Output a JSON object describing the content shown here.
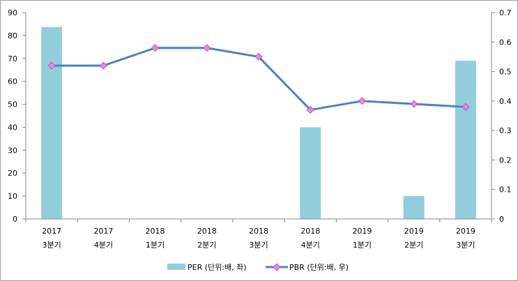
{
  "chart_data": {
    "type": "bar+line",
    "categories": [
      [
        "2017",
        "3분기"
      ],
      [
        "2017",
        "4분기"
      ],
      [
        "2018",
        "1분기"
      ],
      [
        "2018",
        "2분기"
      ],
      [
        "2018",
        "3분기"
      ],
      [
        "2018",
        "4분기"
      ],
      [
        "2019",
        "1분기"
      ],
      [
        "2019",
        "2분기"
      ],
      [
        "2019",
        "3분기"
      ]
    ],
    "series": [
      {
        "name": "PER (단위:배, 좌)",
        "type": "bar",
        "axis": "left",
        "values": [
          83.7,
          null,
          null,
          null,
          null,
          40,
          null,
          10,
          69
        ],
        "color": "#92cddc"
      },
      {
        "name": "PBR (단위:배, 우)",
        "type": "line",
        "axis": "right",
        "values": [
          0.52,
          0.52,
          0.58,
          0.58,
          0.55,
          0.37,
          0.4,
          0.39,
          0.38
        ],
        "line_color": "#4f81bd",
        "marker_color": "#ee82ee"
      }
    ],
    "y_left": {
      "min": 0,
      "max": 90,
      "ticks": [
        "0",
        "10",
        "20",
        "30",
        "40",
        "50",
        "60",
        "70",
        "80",
        "90"
      ]
    },
    "y_right": {
      "min": 0,
      "max": 0.7,
      "ticks": [
        "0",
        "0.1",
        "0.2",
        "0.3",
        "0.4",
        "0.5",
        "0.6",
        "0.7"
      ]
    },
    "grid": false,
    "legend_position": "bottom"
  }
}
